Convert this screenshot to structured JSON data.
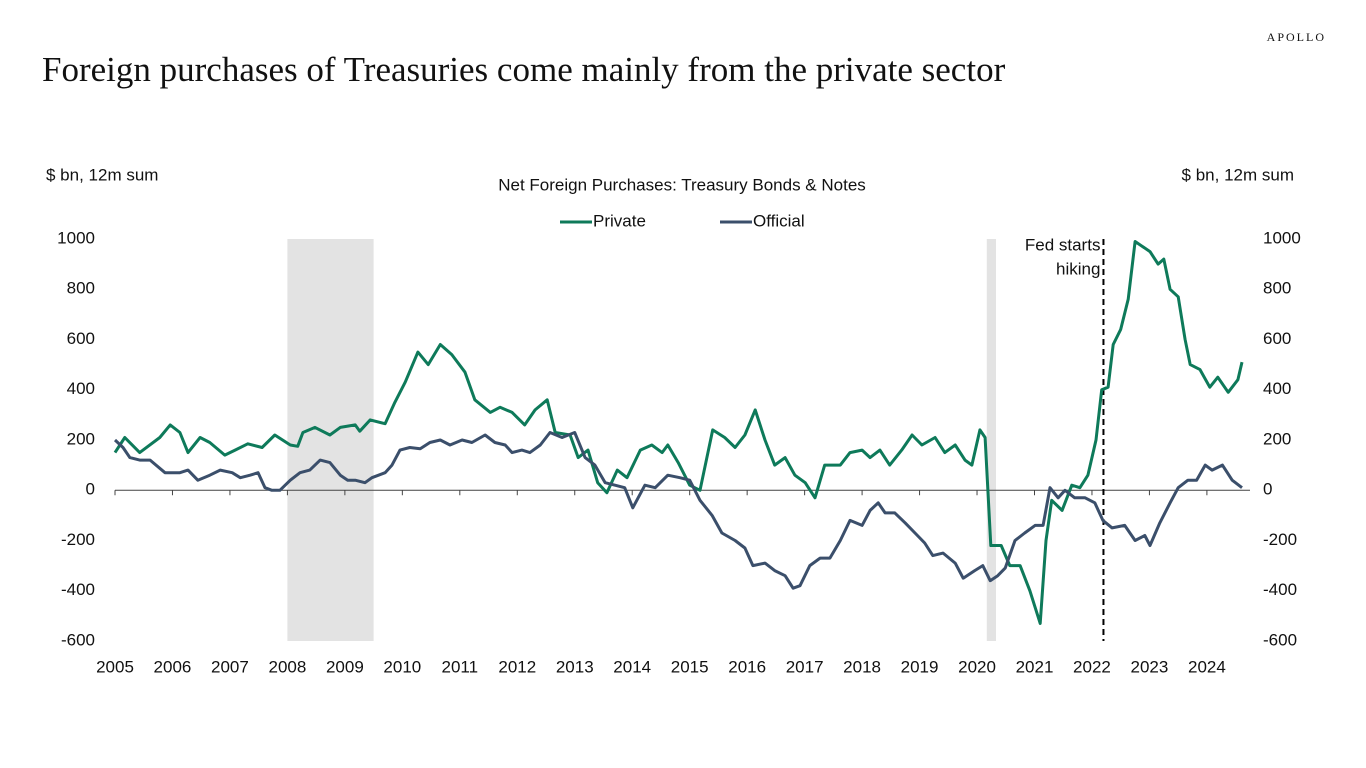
{
  "chart_data": {
    "type": "line",
    "brand": "APOLLO",
    "title": "Foreign purchases of Treasuries come mainly from the private sector",
    "subtitle": "Net Foreign Purchases: Treasury Bonds & Notes",
    "y_label": "$ bn, 12m sum",
    "y2_label": "$ bn, 12m sum",
    "xlim": [
      2005,
      2024.75
    ],
    "xticks": [
      2005,
      2006,
      2007,
      2008,
      2009,
      2010,
      2011,
      2012,
      2013,
      2014,
      2015,
      2016,
      2017,
      2018,
      2019,
      2020,
      2021,
      2022,
      2023,
      2024
    ],
    "ylim": [
      -600,
      1000
    ],
    "yticks": [
      -600,
      -400,
      -200,
      0,
      200,
      400,
      600,
      800,
      1000
    ],
    "y2lim": [
      -600,
      1000
    ],
    "y2ticks": [
      -600,
      -400,
      -200,
      0,
      200,
      400,
      600,
      800,
      1000
    ],
    "shading": [
      [
        2008,
        2009.5
      ],
      [
        2020.17,
        2020.33
      ]
    ],
    "shading_color": "#e3e3e3",
    "annotation": {
      "lines": [
        "Fed starts",
        "hiking"
      ],
      "x": 2022.2
    },
    "series": [
      {
        "name": "Private",
        "color": "#0e7a5a",
        "x": [
          2005.0,
          2005.17,
          2005.43,
          2005.78,
          2005.96,
          2006.13,
          2006.27,
          2006.48,
          2006.65,
          2006.91,
          2007.09,
          2007.31,
          2007.56,
          2007.78,
          2008.05,
          2008.18,
          2008.27,
          2008.48,
          2008.74,
          2008.92,
          2009.18,
          2009.26,
          2009.44,
          2009.7,
          2009.87,
          2010.05,
          2010.27,
          2010.45,
          2010.66,
          2010.86,
          2011.09,
          2011.26,
          2011.53,
          2011.7,
          2011.91,
          2012.13,
          2012.31,
          2012.52,
          2012.66,
          2012.92,
          2013.06,
          2013.23,
          2013.4,
          2013.56,
          2013.74,
          2013.91,
          2014.14,
          2014.34,
          2014.52,
          2014.62,
          2014.8,
          2015.0,
          2015.18,
          2015.4,
          2015.61,
          2015.79,
          2015.96,
          2016.14,
          2016.31,
          2016.48,
          2016.66,
          2016.83,
          2017.01,
          2017.18,
          2017.35,
          2017.62,
          2017.79,
          2018.0,
          2018.14,
          2018.31,
          2018.48,
          2018.69,
          2018.87,
          2019.04,
          2019.27,
          2019.44,
          2019.62,
          2019.79,
          2019.91,
          2020.05,
          2020.14,
          2020.24,
          2020.42,
          2020.57,
          2020.75,
          2020.92,
          2021.1,
          2021.2,
          2021.3,
          2021.48,
          2021.65,
          2021.79,
          2021.93,
          2022.07,
          2022.17,
          2022.28,
          2022.37,
          2022.5,
          2022.63,
          2022.75,
          2023.01,
          2023.15,
          2023.25,
          2023.36,
          2023.5,
          2023.62,
          2023.71,
          2023.88,
          2024.05,
          2024.19,
          2024.37,
          2024.54,
          2024.61
        ],
        "values": [
          150,
          210,
          150,
          210,
          260,
          230,
          150,
          210,
          190,
          140,
          160,
          185,
          170,
          220,
          180,
          175,
          230,
          250,
          220,
          250,
          260,
          235,
          280,
          265,
          350,
          430,
          550,
          500,
          580,
          540,
          470,
          360,
          310,
          330,
          310,
          260,
          320,
          360,
          230,
          220,
          130,
          160,
          30,
          -10,
          80,
          50,
          160,
          180,
          150,
          180,
          110,
          20,
          0,
          240,
          210,
          170,
          220,
          320,
          200,
          100,
          130,
          60,
          30,
          -30,
          100,
          100,
          150,
          160,
          130,
          160,
          100,
          160,
          220,
          180,
          210,
          150,
          180,
          120,
          100,
          240,
          210,
          -220,
          -220,
          -300,
          -300,
          -400,
          -530,
          -200,
          -40,
          -80,
          20,
          10,
          60,
          200,
          400,
          410,
          580,
          640,
          760,
          990,
          950,
          900,
          920,
          800,
          770,
          600,
          500,
          480,
          410,
          450,
          390,
          440,
          510
        ]
      },
      {
        "name": "Official",
        "color": "#3b4f6b",
        "x": [
          2005.0,
          2005.14,
          2005.26,
          2005.43,
          2005.61,
          2005.87,
          2006.13,
          2006.27,
          2006.44,
          2006.65,
          2006.83,
          2007.04,
          2007.18,
          2007.35,
          2007.49,
          2007.61,
          2007.73,
          2007.87,
          2008.05,
          2008.22,
          2008.39,
          2008.57,
          2008.74,
          2008.92,
          2009.05,
          2009.18,
          2009.35,
          2009.47,
          2009.7,
          2009.82,
          2009.96,
          2010.13,
          2010.31,
          2010.48,
          2010.66,
          2010.83,
          2011.04,
          2011.21,
          2011.44,
          2011.61,
          2011.79,
          2011.91,
          2012.08,
          2012.22,
          2012.4,
          2012.57,
          2012.78,
          2013.0,
          2013.18,
          2013.35,
          2013.53,
          2013.7,
          2013.87,
          2014.01,
          2014.22,
          2014.4,
          2014.62,
          2014.83,
          2015.0,
          2015.18,
          2015.39,
          2015.56,
          2015.79,
          2015.96,
          2016.1,
          2016.31,
          2016.48,
          2016.66,
          2016.8,
          2016.92,
          2017.09,
          2017.27,
          2017.44,
          2017.62,
          2017.79,
          2018.0,
          2018.14,
          2018.28,
          2018.4,
          2018.57,
          2018.75,
          2018.92,
          2019.09,
          2019.23,
          2019.41,
          2019.62,
          2019.76,
          2019.96,
          2020.1,
          2020.23,
          2020.36,
          2020.49,
          2020.66,
          2020.83,
          2021.01,
          2021.15,
          2021.27,
          2021.41,
          2021.53,
          2021.7,
          2021.88,
          2022.05,
          2022.19,
          2022.35,
          2022.57,
          2022.75,
          2022.92,
          2023.01,
          2023.18,
          2023.36,
          2023.5,
          2023.67,
          2023.82,
          2023.97,
          2024.09,
          2024.27,
          2024.44,
          2024.61
        ],
        "values": [
          200,
          170,
          130,
          120,
          120,
          70,
          70,
          80,
          40,
          60,
          80,
          70,
          50,
          60,
          70,
          10,
          0,
          0,
          40,
          70,
          80,
          120,
          110,
          60,
          40,
          40,
          30,
          50,
          70,
          100,
          160,
          170,
          165,
          190,
          200,
          180,
          200,
          190,
          220,
          190,
          180,
          150,
          160,
          150,
          180,
          230,
          210,
          230,
          130,
          100,
          30,
          20,
          10,
          -70,
          20,
          10,
          60,
          50,
          40,
          -40,
          -100,
          -170,
          -200,
          -230,
          -300,
          -290,
          -320,
          -340,
          -390,
          -380,
          -300,
          -270,
          -270,
          -200,
          -120,
          -140,
          -80,
          -50,
          -90,
          -90,
          -130,
          -170,
          -210,
          -260,
          -250,
          -290,
          -350,
          -320,
          -300,
          -360,
          -340,
          -310,
          -200,
          -170,
          -140,
          -140,
          10,
          -30,
          0,
          -30,
          -30,
          -50,
          -120,
          -150,
          -140,
          -200,
          -180,
          -220,
          -130,
          -50,
          10,
          40,
          40,
          100,
          80,
          100,
          40,
          10
        ]
      }
    ]
  }
}
